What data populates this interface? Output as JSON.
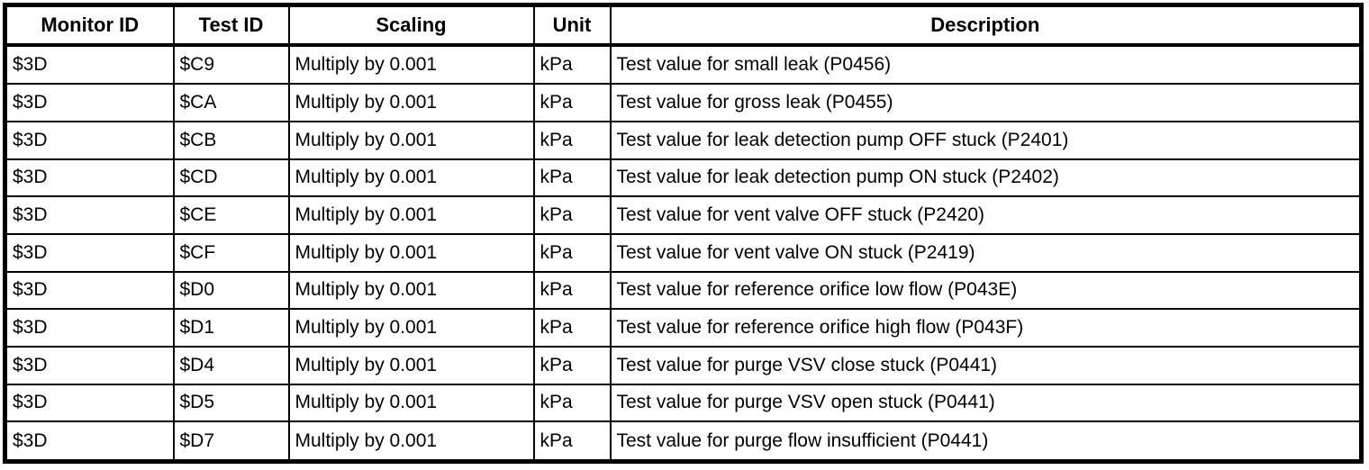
{
  "colors": {
    "border": "#000000",
    "background": "#ffffff",
    "text": "#000000"
  },
  "table": {
    "columns": [
      {
        "key": "monitor_id",
        "label": "Monitor ID"
      },
      {
        "key": "test_id",
        "label": "Test ID"
      },
      {
        "key": "scaling",
        "label": "Scaling"
      },
      {
        "key": "unit",
        "label": "Unit"
      },
      {
        "key": "description",
        "label": "Description"
      }
    ],
    "rows": [
      [
        "$3D",
        "$C9",
        "Multiply by 0.001",
        "kPa",
        "Test value for small leak (P0456)"
      ],
      [
        "$3D",
        "$CA",
        "Multiply by 0.001",
        "kPa",
        "Test value for gross leak (P0455)"
      ],
      [
        "$3D",
        "$CB",
        "Multiply by 0.001",
        "kPa",
        "Test value for leak detection pump OFF stuck (P2401)"
      ],
      [
        "$3D",
        "$CD",
        "Multiply by 0.001",
        "kPa",
        "Test value for leak detection pump ON stuck (P2402)"
      ],
      [
        "$3D",
        "$CE",
        "Multiply by 0.001",
        "kPa",
        "Test value for vent valve OFF stuck (P2420)"
      ],
      [
        "$3D",
        "$CF",
        "Multiply by 0.001",
        "kPa",
        "Test value for vent valve ON stuck (P2419)"
      ],
      [
        "$3D",
        "$D0",
        "Multiply by 0.001",
        "kPa",
        "Test value for reference orifice low flow (P043E)"
      ],
      [
        "$3D",
        "$D1",
        "Multiply by 0.001",
        "kPa",
        "Test value for reference orifice high flow (P043F)"
      ],
      [
        "$3D",
        "$D4",
        "Multiply by 0.001",
        "kPa",
        "Test value for purge VSV close stuck (P0441)"
      ],
      [
        "$3D",
        "$D5",
        "Multiply by 0.001",
        "kPa",
        "Test value for purge VSV open stuck (P0441)"
      ],
      [
        "$3D",
        "$D7",
        "Multiply by 0.001",
        "kPa",
        "Test value for purge flow insufficient (P0441)"
      ]
    ]
  }
}
